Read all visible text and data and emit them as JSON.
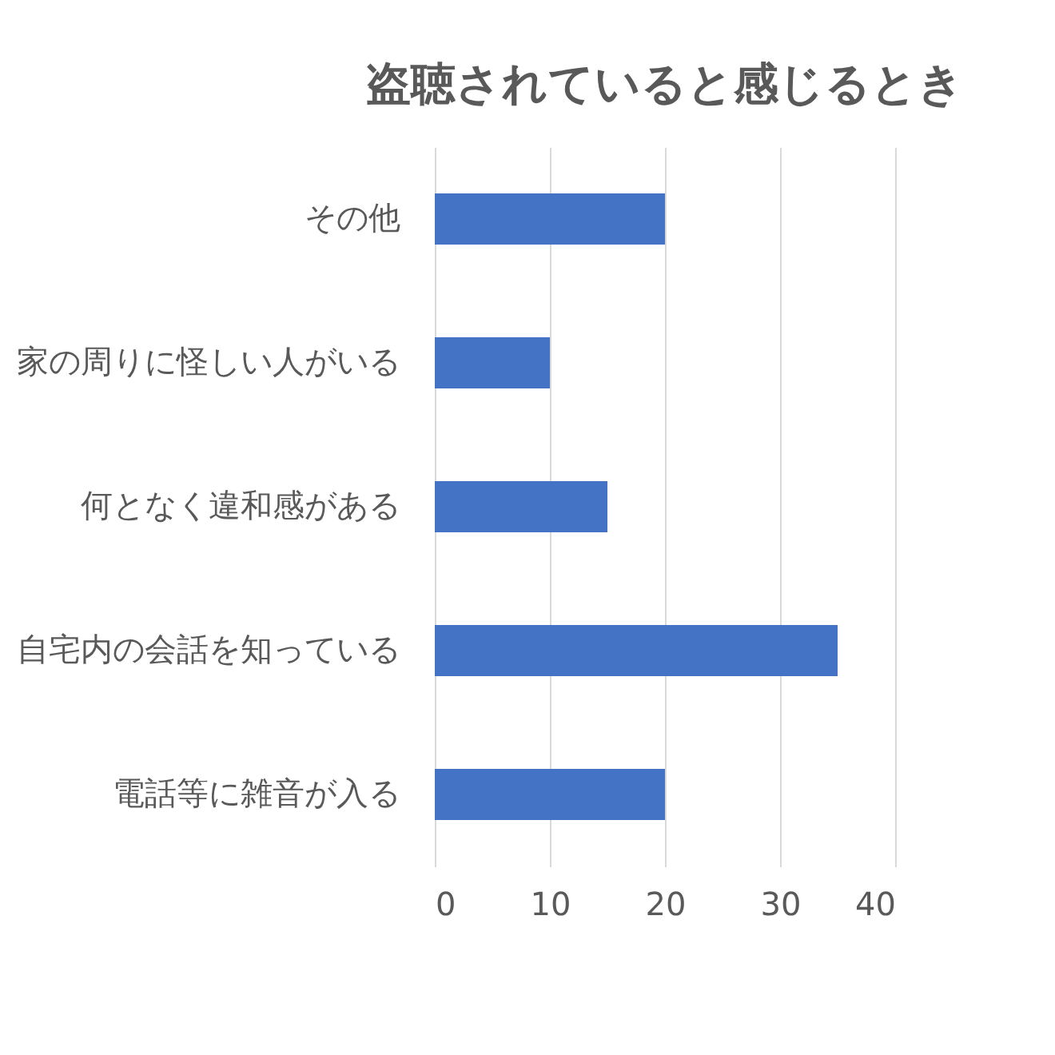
{
  "chart_data": {
    "type": "bar",
    "orientation": "horizontal",
    "title": "盗聴されていると感じるとき",
    "categories": [
      "その他",
      "家の周りに怪しい人がいる",
      "何となく違和感がある",
      "自宅内の会話を知っている",
      "電話等に雑音が入る"
    ],
    "values": [
      20,
      10,
      15,
      35,
      20
    ],
    "color": "#4472c4",
    "xlim": [
      0,
      40
    ],
    "xticks": [
      0,
      10,
      20,
      30,
      40
    ],
    "grid": "x"
  }
}
